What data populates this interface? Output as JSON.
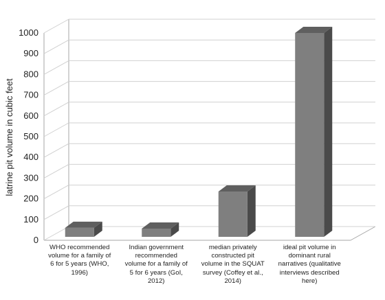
{
  "chart_data": {
    "type": "bar",
    "style": "3d-column",
    "categories": [
      "WHO recommended volume for a family of 6 for 5 years (WHO, 1996)",
      "Indian government recommended volume for a family of 5 for 6 years (GoI, 2012)",
      "median privately constructed pit volume in the SQUAT survey (Coffey et al., 2014)",
      "ideal pit volume in dominant rural narratives (qualitative interviews described here)"
    ],
    "category_lines": [
      [
        "WHO recommended",
        "volume for a family of",
        "6 for 5 years (WHO,",
        "1996)"
      ],
      [
        "Indian government",
        "recommended",
        "volume for a family of",
        "5 for 6 years (GoI,",
        "2012)"
      ],
      [
        "median privately",
        "constructed pit",
        "volume in the SQUAT",
        "survey (Coffey et al.,",
        "2014)"
      ],
      [
        "ideal pit volume in",
        "dominant rural",
        "narratives (qualitative",
        "interviews described",
        "here)"
      ]
    ],
    "values": [
      60,
      55,
      235,
      1000
    ],
    "ylabel": "latrine pit volume in cubic feet",
    "ylim": [
      0,
      1000
    ],
    "yticks": [
      "0",
      "100",
      "200",
      "300",
      "400",
      "500",
      "600",
      "700",
      "800",
      "900",
      "1000"
    ],
    "grid": true,
    "colors": {
      "front": "#7f7f7f",
      "top": "#5f5f5f",
      "side": "#4a4a4a",
      "grid": "#d0d0d0",
      "axis": "#a6a6a6"
    }
  }
}
